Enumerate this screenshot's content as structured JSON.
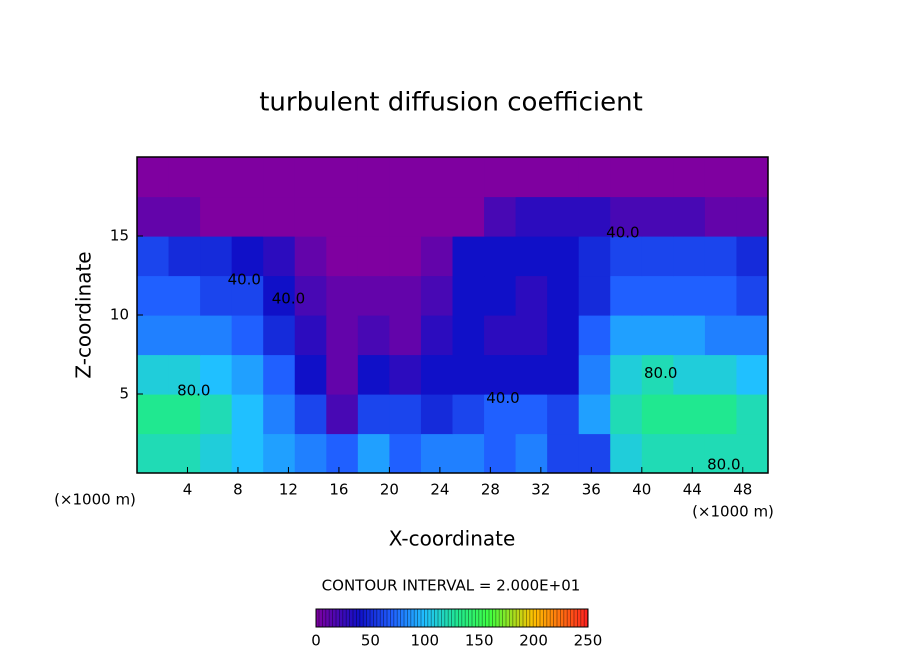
{
  "chart_data": {
    "type": "contour",
    "title": "turbulent diffusion coefficient",
    "x_label": "X-coordinate",
    "y_label": "Z-coordinate",
    "x_unit": "(×1000 m)",
    "y_unit": "(×1000 m)",
    "subtitle": "CONTOUR INTERVAL = 2.000E+01",
    "xlim": [
      0,
      50
    ],
    "ylim": [
      0,
      20
    ],
    "xticks": [
      4,
      8,
      12,
      16,
      20,
      24,
      28,
      32,
      36,
      40,
      44,
      48
    ],
    "yticks": [
      5,
      10,
      15
    ],
    "x": [
      1.25,
      3.75,
      6.25,
      8.75,
      11.25,
      13.75,
      16.25,
      18.75,
      21.25,
      23.75,
      26.25,
      28.75,
      31.25,
      33.75,
      36.25,
      38.75,
      41.25,
      43.75,
      46.25,
      48.75
    ],
    "y": [
      1.25,
      3.75,
      6.25,
      8.75,
      11.25,
      13.75,
      16.25,
      18.75
    ],
    "z": [
      [
        120,
        120,
        110,
        100,
        90,
        80,
        70,
        90,
        70,
        80,
        80,
        70,
        80,
        60,
        60,
        110,
        120,
        120,
        120,
        120
      ],
      [
        130,
        130,
        120,
        100,
        80,
        60,
        20,
        60,
        60,
        50,
        60,
        70,
        70,
        60,
        90,
        120,
        130,
        130,
        130,
        120
      ],
      [
        110,
        110,
        100,
        90,
        70,
        40,
        10,
        40,
        30,
        40,
        40,
        40,
        40,
        40,
        80,
        110,
        120,
        110,
        110,
        100
      ],
      [
        80,
        80,
        80,
        70,
        50,
        30,
        10,
        20,
        10,
        30,
        40,
        30,
        30,
        40,
        70,
        90,
        90,
        90,
        80,
        80
      ],
      [
        70,
        70,
        60,
        60,
        40,
        20,
        10,
        10,
        10,
        20,
        40,
        40,
        30,
        40,
        50,
        70,
        70,
        70,
        70,
        60
      ],
      [
        60,
        50,
        50,
        40,
        30,
        10,
        0,
        0,
        0,
        10,
        40,
        40,
        40,
        40,
        50,
        60,
        60,
        60,
        60,
        50
      ],
      [
        10,
        10,
        0,
        0,
        0,
        0,
        0,
        0,
        0,
        0,
        0,
        20,
        30,
        30,
        30,
        20,
        20,
        20,
        10,
        10
      ],
      [
        0,
        0,
        0,
        0,
        0,
        0,
        0,
        0,
        0,
        0,
        0,
        0,
        0,
        0,
        0,
        0,
        0,
        0,
        0,
        0
      ]
    ],
    "colorbar_lim": [
      0,
      250
    ],
    "colorbar_ticks": [
      0,
      50,
      100,
      150,
      200,
      250
    ],
    "colormap": [
      [
        0,
        "#7f00a0"
      ],
      [
        40,
        "#1010c8"
      ],
      [
        70,
        "#2060ff"
      ],
      [
        100,
        "#20c0ff"
      ],
      [
        130,
        "#20e890"
      ],
      [
        160,
        "#40ff40"
      ],
      [
        200,
        "#ffc000"
      ],
      [
        250,
        "#ff2020"
      ]
    ],
    "contour_labels": [
      {
        "text": "40.0",
        "x": 38.5,
        "y": 15.2
      },
      {
        "text": "80.0",
        "x": 41.5,
        "y": 6.3
      },
      {
        "text": "80.0",
        "x": 46.5,
        "y": 0.5
      },
      {
        "text": "40.0",
        "x": 8.5,
        "y": 12.2
      },
      {
        "text": "40.0",
        "x": 12,
        "y": 11
      },
      {
        "text": "80.0",
        "x": 4.5,
        "y": 5.2
      },
      {
        "text": "40.0",
        "x": 29,
        "y": 4.7
      }
    ]
  }
}
